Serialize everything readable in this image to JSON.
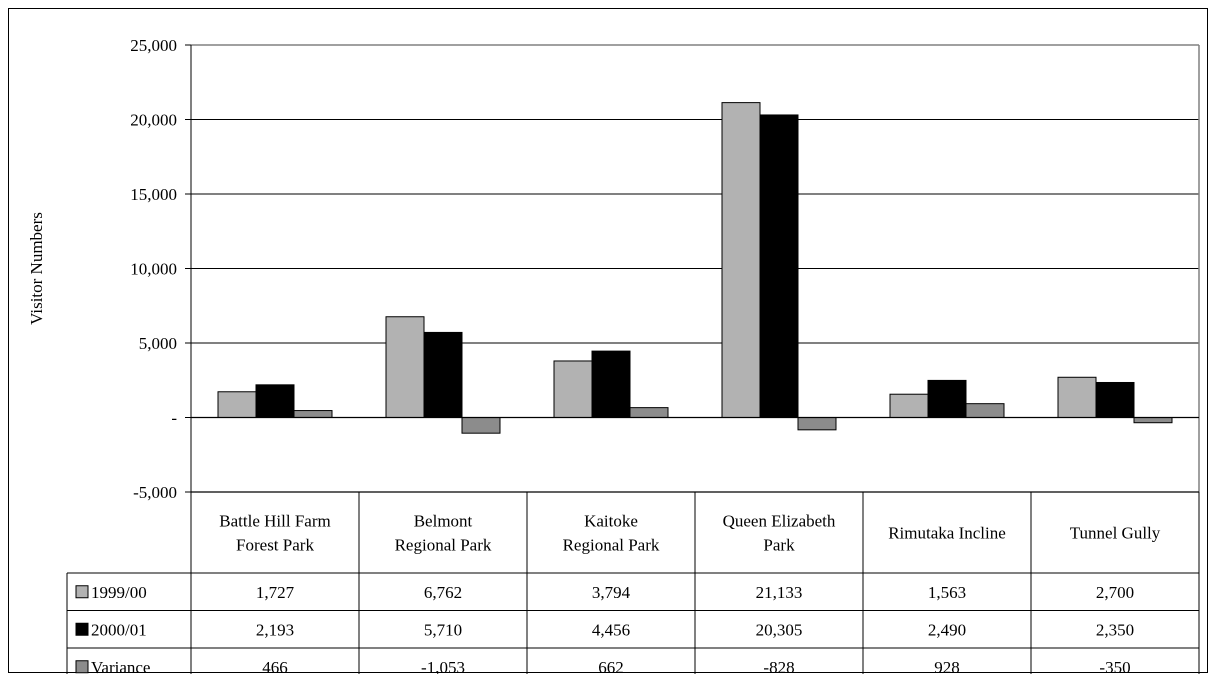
{
  "chart_data": {
    "type": "bar",
    "title": "",
    "xlabel": "",
    "ylabel": "Visitor Numbers",
    "ylim": [
      -5000,
      25000
    ],
    "y_ticks": [
      {
        "value": 25000,
        "label": "25,000"
      },
      {
        "value": 20000,
        "label": "20,000"
      },
      {
        "value": 15000,
        "label": "15,000"
      },
      {
        "value": 10000,
        "label": "10,000"
      },
      {
        "value": 5000,
        "label": "5,000"
      },
      {
        "value": 0,
        "label": "-"
      },
      {
        "value": -5000,
        "label": "-5,000"
      }
    ],
    "gridlines": true,
    "legend_placement": "data table (left)",
    "categories": [
      [
        "Battle Hill Farm",
        "Forest Park"
      ],
      [
        "Belmont",
        "Regional Park"
      ],
      [
        "Kaitoke",
        "Regional Park"
      ],
      [
        "Queen Elizabeth",
        "Park"
      ],
      [
        "Rimutaka Incline"
      ],
      [
        "Tunnel Gully"
      ]
    ],
    "series": [
      {
        "name": "1999/00",
        "color": "#b2b2b2",
        "values": [
          1727,
          6762,
          3794,
          21133,
          1563,
          2700
        ],
        "labels": [
          "1,727",
          "6,762",
          "3,794",
          "21,133",
          "1,563",
          "2,700"
        ]
      },
      {
        "name": "2000/01",
        "color": "#000000",
        "values": [
          2193,
          5710,
          4456,
          20305,
          2490,
          2350
        ],
        "labels": [
          "2,193",
          "5,710",
          "4,456",
          "20,305",
          "2,490",
          "2,350"
        ]
      },
      {
        "name": "Variance",
        "color": "#8c8c8c",
        "values": [
          466,
          -1053,
          662,
          -828,
          928,
          -350
        ],
        "labels": [
          "466",
          "-1,053",
          "662",
          "-828",
          "928",
          "-350"
        ]
      }
    ]
  }
}
